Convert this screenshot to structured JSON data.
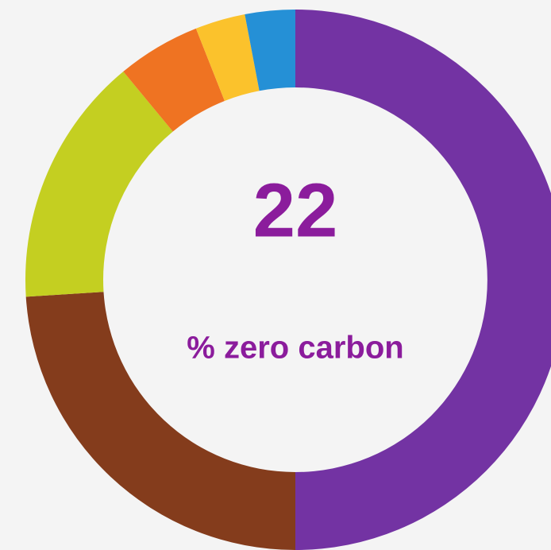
{
  "chart_data": {
    "type": "donut",
    "center_value": 22,
    "center_label": "% zero carbon",
    "series": [
      {
        "values": [
          50,
          24,
          15,
          5,
          3,
          3
        ],
        "colors": [
          "#7333a3",
          "#843c1c",
          "#c4cf21",
          "#ef7322",
          "#fbc22c",
          "#2590d6"
        ]
      }
    ]
  }
}
